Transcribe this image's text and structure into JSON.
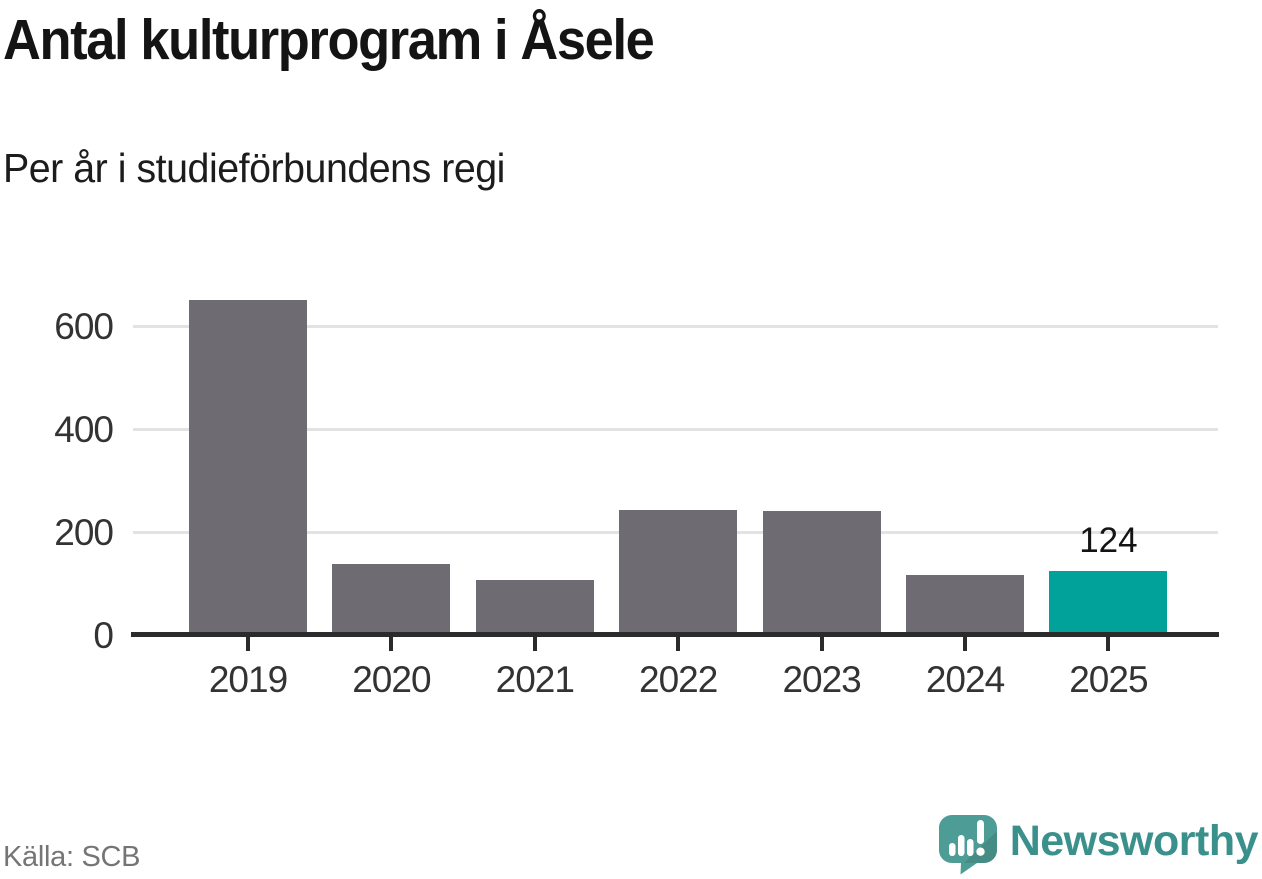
{
  "header": {
    "title": "Antal kulturprogram i Åsele",
    "subtitle": "Per år i studieförbundens regi"
  },
  "footer": {
    "source": "Källa: SCB"
  },
  "branding": {
    "name": "Newsworthy",
    "icon": "speech-bubble-with-bar-chart-and-exclamation",
    "text_color": "#3a918c",
    "icon_color": "#4d9c95"
  },
  "chart_data": {
    "type": "bar",
    "title": "Antal kulturprogram i Åsele",
    "subtitle": "Per år i studieförbundens regi",
    "source": "Källa: SCB",
    "categories": [
      "2019",
      "2020",
      "2021",
      "2022",
      "2023",
      "2024",
      "2025"
    ],
    "values": [
      650,
      137,
      106,
      243,
      241,
      117,
      124
    ],
    "highlight_index": 6,
    "annotation": "124",
    "xlabel": "",
    "ylabel": "",
    "yticks": [
      0,
      200,
      400,
      600
    ],
    "ylim": [
      0,
      690
    ],
    "grid": "horizontal",
    "legend": "none",
    "bar_color": "#6e6c72",
    "highlight_color": "#00a29a",
    "grid_color": "#e3e3e3",
    "axis_color": "#2b2b2b"
  }
}
